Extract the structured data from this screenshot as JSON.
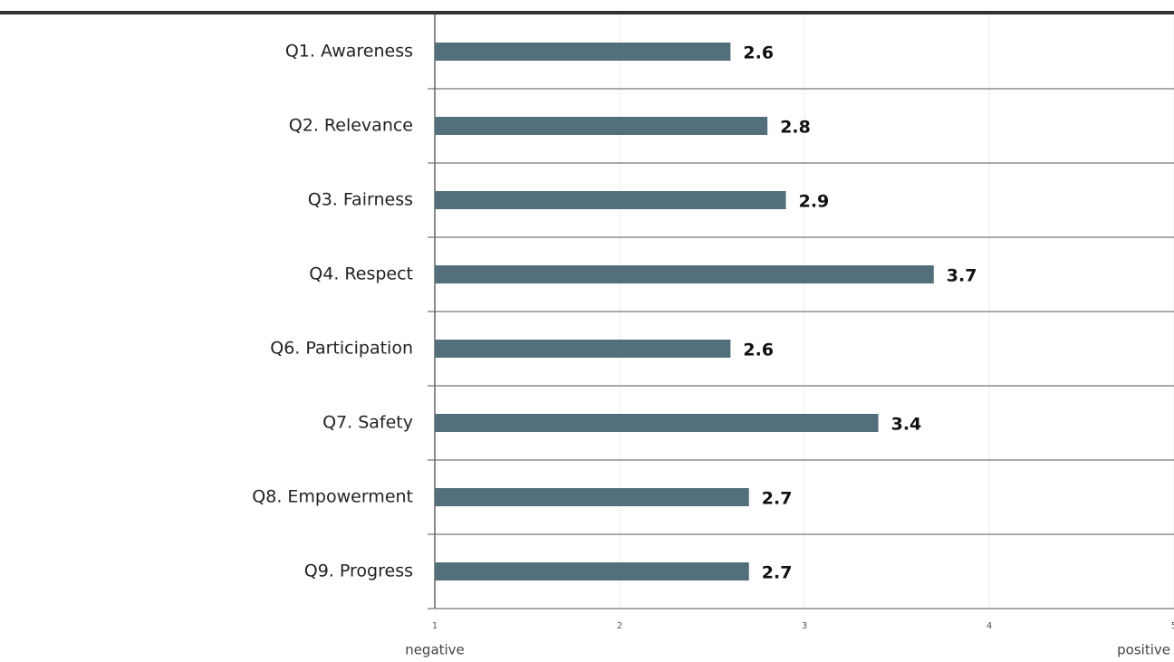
{
  "chart_data": {
    "type": "bar",
    "orientation": "horizontal",
    "categories": [
      "Q1. Awareness",
      "Q2. Relevance",
      "Q3. Fairness",
      "Q4. Respect",
      "Q6. Participation",
      "Q7. Safety",
      "Q8. Empowerment",
      "Q9. Progress"
    ],
    "values": [
      2.6,
      2.8,
      2.9,
      3.7,
      2.6,
      3.4,
      2.7,
      2.7
    ],
    "color": "#536f7b",
    "xlim": [
      1,
      5
    ],
    "xticks": [
      1,
      2,
      3,
      4,
      5
    ],
    "grid": true,
    "x_low_label": "negative",
    "x_high_label": "positive"
  }
}
